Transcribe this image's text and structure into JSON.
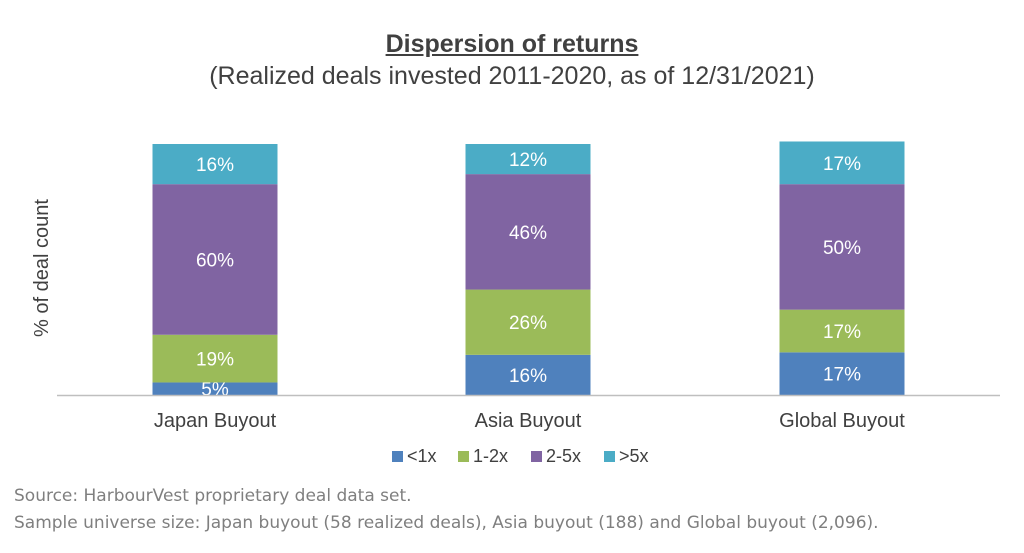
{
  "chart_data": {
    "type": "bar",
    "stacked": true,
    "title": "Dispersion of returns",
    "subtitle": "(Realized deals invested 2011-2020, as of 12/31/2021)",
    "ylabel": "% of  deal count",
    "categories": [
      "Japan Buyout",
      "Asia Buyout",
      "Global Buyout"
    ],
    "series": [
      {
        "name": "<1x",
        "values": [
          5,
          16,
          17
        ],
        "labels": [
          "5%",
          "16%",
          "17%"
        ],
        "color": "#4f81bd"
      },
      {
        "name": "1-2x",
        "values": [
          19,
          26,
          17
        ],
        "labels": [
          "19%",
          "26%",
          "17%"
        ],
        "color": "#9bbb59"
      },
      {
        "name": "2-5x",
        "values": [
          60,
          46,
          50
        ],
        "labels": [
          "60%",
          "46%",
          "50%"
        ],
        "color": "#8064a2"
      },
      {
        "name": ">5x",
        "values": [
          16,
          12,
          17
        ],
        "labels": [
          "16%",
          "12%",
          "17%"
        ],
        "color": "#4bacc6"
      }
    ],
    "ylim": [
      0,
      100
    ],
    "legend": "bottom",
    "grid": false
  },
  "source_lines": [
    "Source: HarbourVest proprietary deal data set.",
    "Sample universe size: Japan buyout (58 realized deals), Asia buyout (188) and Global buyout (2,096)."
  ]
}
